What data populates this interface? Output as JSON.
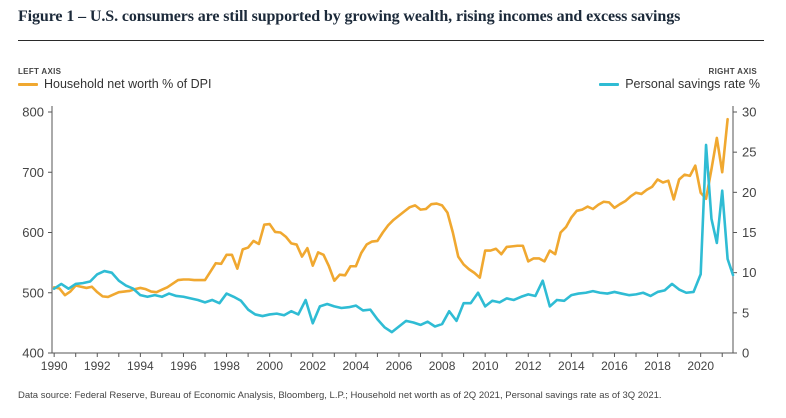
{
  "title": "Figure 1 – U.S. consumers are still supported by growing wealth, rising incomes and excess savings",
  "source": "Data source: Federal Reserve, Bureau of Economic Analysis, Bloomberg, L.P.; Household net worth as of 2Q 2021, Personal savings rate as of 3Q 2021.",
  "colors": {
    "networth": "#f0a830",
    "savings": "#2fbcd4",
    "axis": "#555555"
  },
  "chart_data": {
    "type": "line",
    "axis_caption_left": "LEFT AXIS",
    "axis_caption_right": "RIGHT AXIS",
    "xlim": [
      1989.9,
      2021.5
    ],
    "ylim_left": [
      400,
      800
    ],
    "ylim_right": [
      0,
      30
    ],
    "x_ticks": [
      1990,
      1992,
      1994,
      1996,
      1998,
      2000,
      2002,
      2004,
      2006,
      2008,
      2010,
      2012,
      2014,
      2016,
      2018,
      2020
    ],
    "y_ticks_left": [
      400,
      500,
      600,
      700,
      800
    ],
    "y_ticks_right": [
      0,
      5,
      10,
      15,
      20,
      25,
      30
    ],
    "grid": false,
    "legend": "top",
    "series": [
      {
        "name": "Household net worth % of DPI",
        "axis": "left",
        "points": [
          [
            1990.0,
            509
          ],
          [
            1990.25,
            507
          ],
          [
            1990.5,
            496
          ],
          [
            1990.75,
            502
          ],
          [
            1991.0,
            512
          ],
          [
            1991.25,
            510
          ],
          [
            1991.5,
            508
          ],
          [
            1991.75,
            510
          ],
          [
            1992.0,
            501
          ],
          [
            1992.25,
            494
          ],
          [
            1992.5,
            493
          ],
          [
            1992.75,
            497
          ],
          [
            1993.0,
            501
          ],
          [
            1993.25,
            502
          ],
          [
            1993.5,
            503
          ],
          [
            1993.75,
            506
          ],
          [
            1994.0,
            508
          ],
          [
            1994.25,
            506
          ],
          [
            1994.5,
            502
          ],
          [
            1994.75,
            501
          ],
          [
            1995.0,
            505
          ],
          [
            1995.25,
            509
          ],
          [
            1995.5,
            515
          ],
          [
            1995.75,
            521
          ],
          [
            1996.0,
            522
          ],
          [
            1996.25,
            522
          ],
          [
            1996.5,
            521
          ],
          [
            1996.75,
            521
          ],
          [
            1997.0,
            521
          ],
          [
            1997.25,
            535
          ],
          [
            1997.5,
            549
          ],
          [
            1997.75,
            548
          ],
          [
            1998.0,
            563
          ],
          [
            1998.25,
            563
          ],
          [
            1998.5,
            540
          ],
          [
            1998.75,
            572
          ],
          [
            1999.0,
            575
          ],
          [
            1999.25,
            586
          ],
          [
            1999.5,
            581
          ],
          [
            1999.75,
            613
          ],
          [
            2000.0,
            614
          ],
          [
            2000.25,
            601
          ],
          [
            2000.5,
            600
          ],
          [
            2000.75,
            593
          ],
          [
            2001.0,
            582
          ],
          [
            2001.25,
            580
          ],
          [
            2001.5,
            560
          ],
          [
            2001.75,
            574
          ],
          [
            2002.0,
            545
          ],
          [
            2002.25,
            567
          ],
          [
            2002.5,
            563
          ],
          [
            2002.75,
            544
          ],
          [
            2003.0,
            520
          ],
          [
            2003.25,
            530
          ],
          [
            2003.5,
            529
          ],
          [
            2003.75,
            544
          ],
          [
            2004.0,
            544
          ],
          [
            2004.25,
            566
          ],
          [
            2004.5,
            580
          ],
          [
            2004.75,
            585
          ],
          [
            2005.0,
            586
          ],
          [
            2005.25,
            600
          ],
          [
            2005.5,
            612
          ],
          [
            2005.75,
            621
          ],
          [
            2006.0,
            628
          ],
          [
            2006.25,
            635
          ],
          [
            2006.5,
            642
          ],
          [
            2006.75,
            645
          ],
          [
            2007.0,
            638
          ],
          [
            2007.25,
            639
          ],
          [
            2007.5,
            647
          ],
          [
            2007.75,
            648
          ],
          [
            2008.0,
            645
          ],
          [
            2008.25,
            633
          ],
          [
            2008.5,
            600
          ],
          [
            2008.75,
            560
          ],
          [
            2009.0,
            547
          ],
          [
            2009.25,
            539
          ],
          [
            2009.5,
            533
          ],
          [
            2009.75,
            525
          ],
          [
            2010.0,
            570
          ],
          [
            2010.25,
            570
          ],
          [
            2010.5,
            573
          ],
          [
            2010.75,
            564
          ],
          [
            2011.0,
            576
          ],
          [
            2011.25,
            577
          ],
          [
            2011.5,
            578
          ],
          [
            2011.75,
            578
          ],
          [
            2012.0,
            552
          ],
          [
            2012.25,
            557
          ],
          [
            2012.5,
            557
          ],
          [
            2012.75,
            552
          ],
          [
            2013.0,
            570
          ],
          [
            2013.25,
            564
          ],
          [
            2013.5,
            600
          ],
          [
            2013.75,
            609
          ],
          [
            2014.0,
            625
          ],
          [
            2014.25,
            636
          ],
          [
            2014.5,
            638
          ],
          [
            2014.75,
            643
          ],
          [
            2015.0,
            639
          ],
          [
            2015.25,
            646
          ],
          [
            2015.5,
            651
          ],
          [
            2015.75,
            650
          ],
          [
            2016.0,
            641
          ],
          [
            2016.25,
            647
          ],
          [
            2016.5,
            652
          ],
          [
            2016.75,
            660
          ],
          [
            2017.0,
            666
          ],
          [
            2017.25,
            664
          ],
          [
            2017.5,
            671
          ],
          [
            2017.75,
            676
          ],
          [
            2018.0,
            688
          ],
          [
            2018.25,
            683
          ],
          [
            2018.5,
            686
          ],
          [
            2018.75,
            655
          ],
          [
            2019.0,
            688
          ],
          [
            2019.25,
            696
          ],
          [
            2019.5,
            694
          ],
          [
            2019.75,
            711
          ],
          [
            2020.0,
            666
          ],
          [
            2020.25,
            656
          ],
          [
            2020.5,
            705
          ],
          [
            2020.75,
            757
          ],
          [
            2021.0,
            700
          ],
          [
            2021.25,
            788
          ]
        ]
      },
      {
        "name": "Personal savings rate %",
        "axis": "right",
        "points": [
          [
            1990.0,
            8.0
          ],
          [
            1990.33,
            8.6
          ],
          [
            1990.67,
            8.0
          ],
          [
            1991.0,
            8.6
          ],
          [
            1991.33,
            8.7
          ],
          [
            1991.67,
            8.9
          ],
          [
            1992.0,
            9.8
          ],
          [
            1992.33,
            10.2
          ],
          [
            1992.67,
            10.0
          ],
          [
            1993.0,
            9.0
          ],
          [
            1993.33,
            8.4
          ],
          [
            1993.67,
            8.0
          ],
          [
            1994.0,
            7.2
          ],
          [
            1994.33,
            7.0
          ],
          [
            1994.67,
            7.2
          ],
          [
            1995.0,
            7.0
          ],
          [
            1995.33,
            7.4
          ],
          [
            1995.67,
            7.1
          ],
          [
            1996.0,
            7.0
          ],
          [
            1996.33,
            6.8
          ],
          [
            1996.67,
            6.6
          ],
          [
            1997.0,
            6.3
          ],
          [
            1997.33,
            6.6
          ],
          [
            1997.67,
            6.2
          ],
          [
            1998.0,
            7.4
          ],
          [
            1998.33,
            7.0
          ],
          [
            1998.67,
            6.5
          ],
          [
            1999.0,
            5.4
          ],
          [
            1999.33,
            4.8
          ],
          [
            1999.67,
            4.6
          ],
          [
            2000.0,
            4.8
          ],
          [
            2000.33,
            4.9
          ],
          [
            2000.67,
            4.7
          ],
          [
            2001.0,
            5.2
          ],
          [
            2001.33,
            4.8
          ],
          [
            2001.67,
            6.6
          ],
          [
            2002.0,
            3.7
          ],
          [
            2002.33,
            5.8
          ],
          [
            2002.67,
            6.1
          ],
          [
            2003.0,
            5.8
          ],
          [
            2003.33,
            5.6
          ],
          [
            2003.67,
            5.7
          ],
          [
            2004.0,
            5.9
          ],
          [
            2004.33,
            5.3
          ],
          [
            2004.67,
            5.4
          ],
          [
            2005.0,
            4.2
          ],
          [
            2005.33,
            3.2
          ],
          [
            2005.67,
            2.6
          ],
          [
            2006.0,
            3.3
          ],
          [
            2006.33,
            4.0
          ],
          [
            2006.67,
            3.8
          ],
          [
            2007.0,
            3.5
          ],
          [
            2007.33,
            3.9
          ],
          [
            2007.67,
            3.3
          ],
          [
            2008.0,
            3.6
          ],
          [
            2008.33,
            5.2
          ],
          [
            2008.67,
            4.0
          ],
          [
            2009.0,
            6.2
          ],
          [
            2009.33,
            6.2
          ],
          [
            2009.67,
            7.5
          ],
          [
            2010.0,
            5.8
          ],
          [
            2010.33,
            6.5
          ],
          [
            2010.67,
            6.3
          ],
          [
            2011.0,
            6.8
          ],
          [
            2011.33,
            6.6
          ],
          [
            2011.67,
            7.0
          ],
          [
            2012.0,
            7.3
          ],
          [
            2012.33,
            7.1
          ],
          [
            2012.67,
            9.0
          ],
          [
            2013.0,
            5.8
          ],
          [
            2013.33,
            6.6
          ],
          [
            2013.67,
            6.5
          ],
          [
            2014.0,
            7.2
          ],
          [
            2014.33,
            7.4
          ],
          [
            2014.67,
            7.5
          ],
          [
            2015.0,
            7.7
          ],
          [
            2015.33,
            7.5
          ],
          [
            2015.67,
            7.4
          ],
          [
            2016.0,
            7.6
          ],
          [
            2016.33,
            7.4
          ],
          [
            2016.67,
            7.2
          ],
          [
            2017.0,
            7.3
          ],
          [
            2017.33,
            7.5
          ],
          [
            2017.67,
            7.1
          ],
          [
            2018.0,
            7.6
          ],
          [
            2018.33,
            7.8
          ],
          [
            2018.67,
            8.6
          ],
          [
            2019.0,
            7.9
          ],
          [
            2019.33,
            7.5
          ],
          [
            2019.67,
            7.6
          ],
          [
            2020.0,
            9.8
          ],
          [
            2020.25,
            25.9
          ],
          [
            2020.5,
            16.7
          ],
          [
            2020.75,
            13.7
          ],
          [
            2021.0,
            20.2
          ],
          [
            2021.25,
            11.7
          ],
          [
            2021.5,
            9.7
          ]
        ]
      }
    ]
  }
}
